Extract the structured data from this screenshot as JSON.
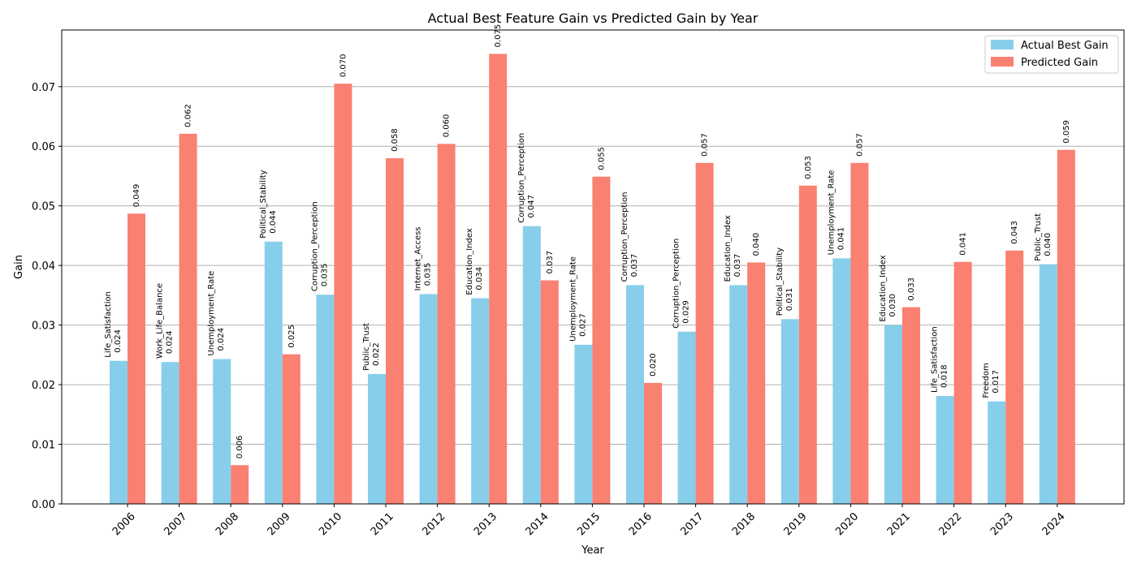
{
  "chart_data": {
    "type": "bar",
    "title": "Actual Best Feature Gain vs Predicted Gain by Year",
    "xlabel": "Year",
    "ylabel": "Gain",
    "ylim": [
      0,
      0.0795
    ],
    "yticks": [
      "0.00",
      "0.01",
      "0.02",
      "0.03",
      "0.04",
      "0.05",
      "0.06",
      "0.07"
    ],
    "grid": "y",
    "legend_position": "top-right",
    "categories": [
      "2006",
      "2007",
      "2008",
      "2009",
      "2010",
      "2011",
      "2012",
      "2013",
      "2014",
      "2015",
      "2016",
      "2017",
      "2018",
      "2019",
      "2020",
      "2021",
      "2022",
      "2023",
      "2024"
    ],
    "series": [
      {
        "name": "Actual Best Gain",
        "color": "#87ceeb",
        "values": [
          0.024,
          0.0238,
          0.0243,
          0.044,
          0.0351,
          0.0218,
          0.0352,
          0.0345,
          0.0466,
          0.0267,
          0.0367,
          0.0289,
          0.0367,
          0.031,
          0.0412,
          0.03,
          0.0181,
          0.0172,
          0.0402
        ],
        "value_labels": [
          "0.024",
          "0.024",
          "0.024",
          "0.044",
          "0.035",
          "0.022",
          "0.035",
          "0.034",
          "0.047",
          "0.027",
          "0.037",
          "0.029",
          "0.037",
          "0.031",
          "0.041",
          "0.030",
          "0.018",
          "0.017",
          "0.040"
        ],
        "feature_labels": [
          "Life_Satisfaction",
          "Work_Life_Balance",
          "Unemployment_Rate",
          "Political_Stability",
          "Corruption_Perception",
          "Public_Trust",
          "Internet_Access",
          "Education_Index",
          "Corruption_Perception",
          "Unemployment_Rate",
          "Corruption_Perception",
          "Corruption_Perception",
          "Education_Index",
          "Political_Stability",
          "Unemployment_Rate",
          "Education_Index",
          "Life_Satisfaction",
          "Freedom",
          "Public_Trust"
        ]
      },
      {
        "name": "Predicted Gain",
        "color": "#fa8072",
        "values": [
          0.0487,
          0.0621,
          0.0065,
          0.0251,
          0.0705,
          0.058,
          0.0604,
          0.0755,
          0.0375,
          0.0549,
          0.0203,
          0.0572,
          0.0405,
          0.0534,
          0.0572,
          0.033,
          0.0406,
          0.0425,
          0.0594
        ],
        "value_labels": [
          "0.049",
          "0.062",
          "0.006",
          "0.025",
          "0.070",
          "0.058",
          "0.060",
          "0.075",
          "0.037",
          "0.055",
          "0.020",
          "0.057",
          "0.040",
          "0.053",
          "0.057",
          "0.033",
          "0.041",
          "0.043",
          "0.059"
        ]
      }
    ]
  }
}
